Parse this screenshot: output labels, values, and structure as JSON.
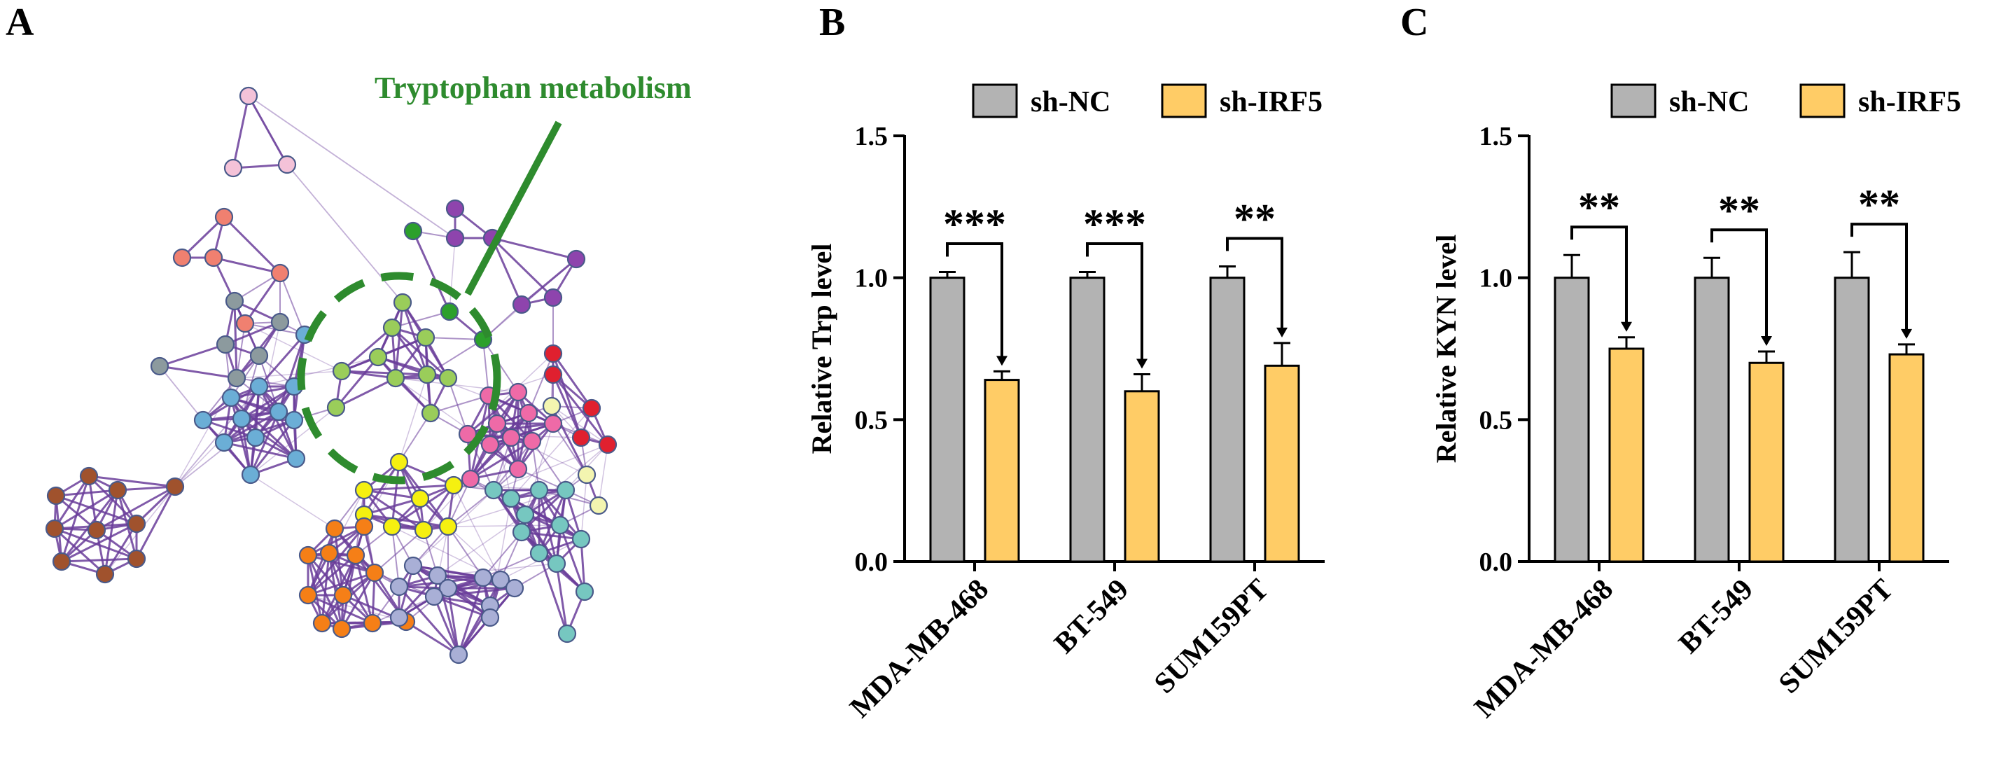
{
  "panels": {
    "a": "A",
    "b": "B",
    "c": "C"
  },
  "network": {
    "annotation": "Tryptophan metabolism",
    "annotation_color": "#2e8b2e",
    "edge_color": "#6a3d9a",
    "clusters": [
      {
        "name": "pink",
        "color": "#f4c2d8",
        "nodes": 3
      },
      {
        "name": "salmon",
        "color": "#f08070",
        "nodes": 5
      },
      {
        "name": "grey",
        "color": "#8c9a9e",
        "nodes": 6
      },
      {
        "name": "blue",
        "color": "#6baed6",
        "nodes": 12
      },
      {
        "name": "purple",
        "color": "#8e44ad",
        "nodes": 6
      },
      {
        "name": "green",
        "color": "#2ca02c",
        "nodes": 3
      },
      {
        "name": "light-green",
        "color": "#9acd5a",
        "nodes": 10
      },
      {
        "name": "red",
        "color": "#e0202f",
        "nodes": 4
      },
      {
        "name": "hot-pink",
        "color": "#ee6aa7",
        "nodes": 11
      },
      {
        "name": "pale-yellow",
        "color": "#f3f5b0",
        "nodes": 3
      },
      {
        "name": "yellow",
        "color": "#f5f010",
        "nodes": 8
      },
      {
        "name": "teal",
        "color": "#76c7c0",
        "nodes": 12
      },
      {
        "name": "orange",
        "color": "#f57f17",
        "nodes": 12
      },
      {
        "name": "lavender",
        "color": "#a9afd6",
        "nodes": 12
      },
      {
        "name": "brown",
        "color": "#a0522d",
        "nodes": 10
      }
    ]
  },
  "legend": {
    "items": [
      {
        "label": "sh-NC",
        "color": "#b3b3b3"
      },
      {
        "label": "sh-IRF5",
        "color": "#ffcc66"
      }
    ]
  },
  "chart_data": [
    {
      "type": "bar",
      "panel": "B",
      "categories": [
        "MDA-MB-468",
        "BT-549",
        "SUM159PT"
      ],
      "series": [
        {
          "name": "sh-NC",
          "values": [
            1.0,
            1.0,
            1.0
          ],
          "errors": [
            0.02,
            0.02,
            0.04
          ]
        },
        {
          "name": "sh-IRF5",
          "values": [
            0.64,
            0.6,
            0.69
          ],
          "errors": [
            0.03,
            0.06,
            0.08
          ]
        }
      ],
      "significance": [
        "***",
        "***",
        "**"
      ],
      "ylabel": "Relative Trp level",
      "xlabel": "",
      "ylim": [
        0,
        1.5
      ],
      "yticks": [
        "0.0",
        "0.5",
        "1.0",
        "1.5"
      ],
      "grid": false,
      "legend_position": "top"
    },
    {
      "type": "bar",
      "panel": "C",
      "categories": [
        "MDA-MB-468",
        "BT-549",
        "SUM159PT"
      ],
      "series": [
        {
          "name": "sh-NC",
          "values": [
            1.0,
            1.0,
            1.0
          ],
          "errors": [
            0.08,
            0.07,
            0.09
          ]
        },
        {
          "name": "sh-IRF5",
          "values": [
            0.75,
            0.7,
            0.73
          ],
          "errors": [
            0.04,
            0.04,
            0.035
          ]
        }
      ],
      "significance": [
        "**",
        "**",
        "**"
      ],
      "ylabel": "Relative KYN level",
      "xlabel": "",
      "ylim": [
        0,
        1.5
      ],
      "yticks": [
        "0.0",
        "0.5",
        "1.0",
        "1.5"
      ],
      "grid": false,
      "legend_position": "top"
    }
  ]
}
